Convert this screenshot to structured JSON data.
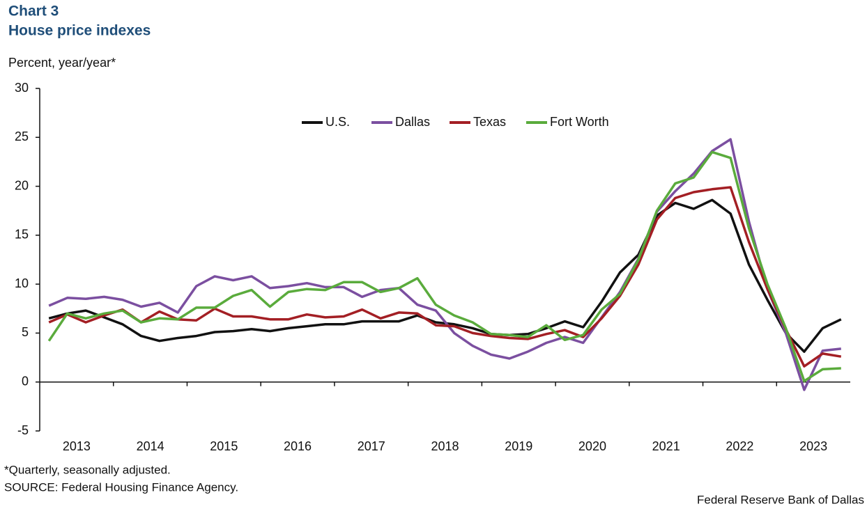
{
  "chart_data": {
    "type": "line",
    "title": "Chart 3",
    "subtitle": "House price indexes",
    "y_label": "Percent, year/year*",
    "footnote": "*Quarterly, seasonally adjusted.",
    "source": "SOURCE: Federal Housing Finance Agency.",
    "credit": "Federal Reserve Bank of Dallas",
    "categories": [
      "2013",
      null,
      null,
      null,
      "2014",
      null,
      null,
      null,
      "2015",
      null,
      null,
      null,
      "2016",
      null,
      null,
      null,
      "2017",
      null,
      null,
      null,
      "2018",
      null,
      null,
      null,
      "2019",
      null,
      null,
      null,
      "2020",
      null,
      null,
      null,
      "2021",
      null,
      null,
      null,
      "2022",
      null,
      null,
      null,
      "2023",
      null,
      null,
      null
    ],
    "ylim": [
      -5,
      30
    ],
    "yticks": [
      -5,
      0,
      5,
      10,
      15,
      20,
      25,
      30
    ],
    "legend": "top",
    "series": [
      {
        "name": "U.S.",
        "color": "#111111",
        "values": [
          6.5,
          7.0,
          7.3,
          6.6,
          5.9,
          4.7,
          4.2,
          4.5,
          4.7,
          5.1,
          5.2,
          5.4,
          5.2,
          5.5,
          5.7,
          5.9,
          5.9,
          6.2,
          6.2,
          6.2,
          6.8,
          6.1,
          5.9,
          5.5,
          4.9,
          4.8,
          4.9,
          5.5,
          6.2,
          5.6,
          8.2,
          11.2,
          13.0,
          17.0,
          18.3,
          17.7,
          18.6,
          17.2,
          12.0,
          8.4,
          5.0,
          3.1,
          5.5,
          6.4
        ]
      },
      {
        "name": "Dallas",
        "color": "#7b4fa0",
        "values": [
          7.8,
          8.6,
          8.5,
          8.7,
          8.4,
          7.7,
          8.1,
          7.1,
          9.8,
          10.8,
          10.4,
          10.8,
          9.6,
          9.8,
          10.1,
          9.7,
          9.7,
          8.7,
          9.4,
          9.6,
          7.9,
          7.3,
          5.0,
          3.7,
          2.8,
          2.4,
          3.1,
          4.0,
          4.6,
          4.0,
          6.6,
          9.2,
          12.6,
          17.4,
          19.5,
          21.3,
          23.6,
          24.8,
          16.4,
          9.5,
          5.0,
          -0.8,
          3.2,
          3.4
        ]
      },
      {
        "name": "Texas",
        "color": "#a31f24",
        "values": [
          6.1,
          6.9,
          6.1,
          6.8,
          7.4,
          6.1,
          7.2,
          6.4,
          6.3,
          7.5,
          6.7,
          6.7,
          6.4,
          6.4,
          6.9,
          6.6,
          6.7,
          7.4,
          6.5,
          7.1,
          7.0,
          5.8,
          5.7,
          5.0,
          4.7,
          4.5,
          4.4,
          4.9,
          5.3,
          4.6,
          6.5,
          8.8,
          12.0,
          16.6,
          18.8,
          19.4,
          19.7,
          19.9,
          14.3,
          9.5,
          5.4,
          1.6,
          2.9,
          2.6
        ]
      },
      {
        "name": "Fort Worth",
        "color": "#5aab3c",
        "values": [
          4.2,
          7.0,
          6.5,
          7.0,
          7.3,
          6.1,
          6.5,
          6.4,
          7.6,
          7.6,
          8.8,
          9.4,
          7.7,
          9.2,
          9.5,
          9.4,
          10.2,
          10.2,
          9.2,
          9.6,
          10.6,
          7.9,
          6.8,
          6.1,
          4.9,
          4.8,
          4.6,
          5.8,
          4.3,
          4.8,
          7.4,
          9.0,
          12.5,
          17.5,
          20.3,
          20.9,
          23.5,
          22.9,
          15.7,
          10.0,
          5.5,
          0.1,
          1.3,
          1.4
        ]
      }
    ]
  }
}
